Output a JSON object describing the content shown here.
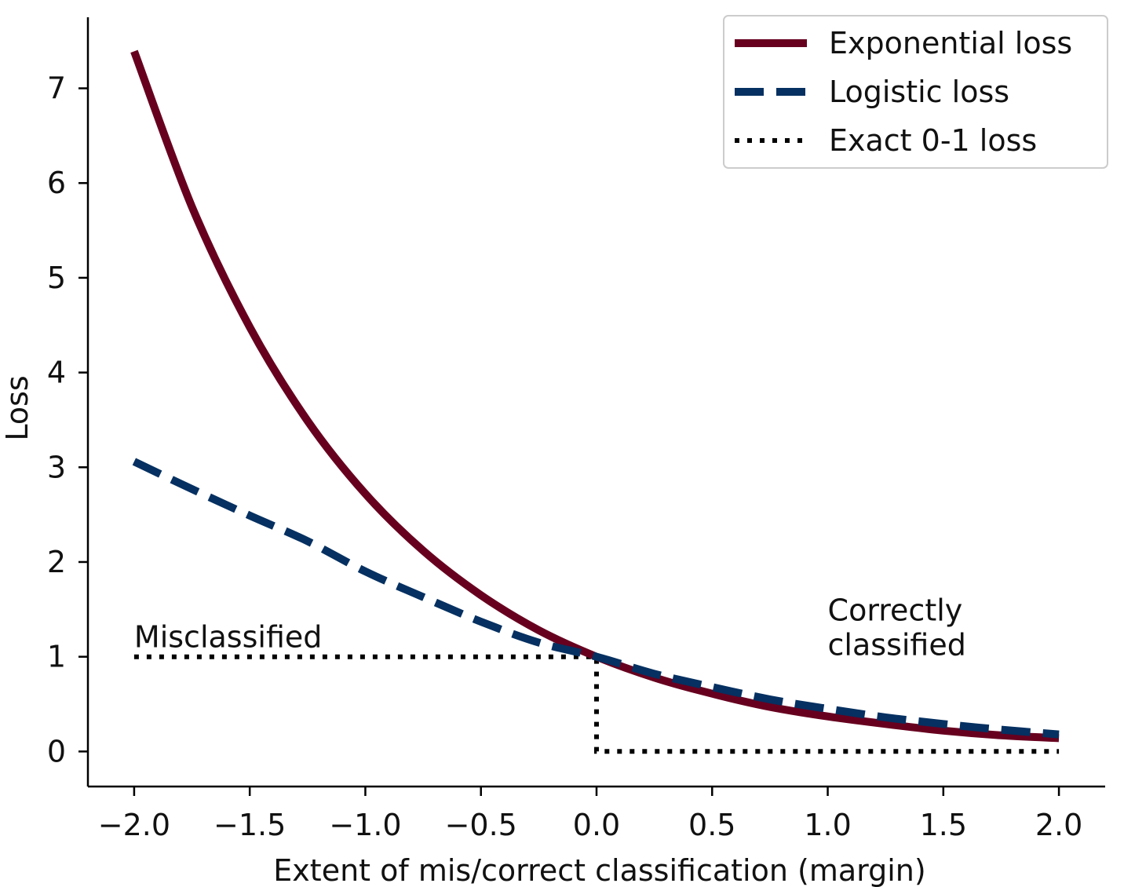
{
  "chart_data": {
    "type": "line",
    "xlabel": "Extent of mis/correct classification (margin)",
    "ylabel": "Loss",
    "xlim": [
      -2.2,
      2.2
    ],
    "ylim": [
      -0.37,
      7.75
    ],
    "xticks": [
      -2.0,
      -1.5,
      -1.0,
      -0.5,
      0.0,
      0.5,
      1.0,
      1.5,
      2.0
    ],
    "xtick_labels": [
      "−2.0",
      "−1.5",
      "−1.0",
      "−0.5",
      "0.0",
      "0.5",
      "1.0",
      "1.5",
      "2.0"
    ],
    "yticks": [
      0,
      1,
      2,
      3,
      4,
      5,
      6,
      7
    ],
    "ytick_labels": [
      "0",
      "1",
      "2",
      "3",
      "4",
      "5",
      "6",
      "7"
    ],
    "grid": false,
    "legend_position": "top-right",
    "series": [
      {
        "name": "Exponential loss",
        "style": "solid",
        "color": "#67001f",
        "x": [
          -2.0,
          -1.75,
          -1.5,
          -1.25,
          -1.0,
          -0.75,
          -0.5,
          -0.25,
          0.0,
          0.25,
          0.5,
          0.75,
          1.0,
          1.25,
          1.5,
          1.75,
          2.0
        ],
        "y": [
          7.39,
          5.75,
          4.48,
          3.49,
          2.72,
          2.12,
          1.65,
          1.28,
          1.0,
          0.78,
          0.61,
          0.47,
          0.37,
          0.29,
          0.22,
          0.17,
          0.14
        ]
      },
      {
        "name": "Logistic loss",
        "style": "dashed",
        "color": "#053061",
        "x": [
          -2.0,
          -1.75,
          -1.5,
          -1.25,
          -1.0,
          -0.75,
          -0.5,
          -0.25,
          0.0,
          0.25,
          0.5,
          0.75,
          1.0,
          1.25,
          1.5,
          1.75,
          2.0
        ],
        "y": [
          3.06,
          2.77,
          2.49,
          2.22,
          1.9,
          1.63,
          1.37,
          1.15,
          1.0,
          0.82,
          0.68,
          0.55,
          0.45,
          0.36,
          0.29,
          0.23,
          0.18
        ]
      },
      {
        "name": "Exact 0-1 loss",
        "style": "dotted",
        "color": "#000000",
        "x": [
          -2.0,
          0.0,
          0.0,
          2.0
        ],
        "y": [
          1,
          1,
          0,
          0
        ]
      }
    ],
    "annotations": [
      {
        "lines": [
          "Misclassified"
        ],
        "x": -2.0,
        "y": 1.0
      },
      {
        "lines": [
          "Correctly",
          "classified"
        ],
        "x": 1.0,
        "y": 1.0
      }
    ]
  }
}
